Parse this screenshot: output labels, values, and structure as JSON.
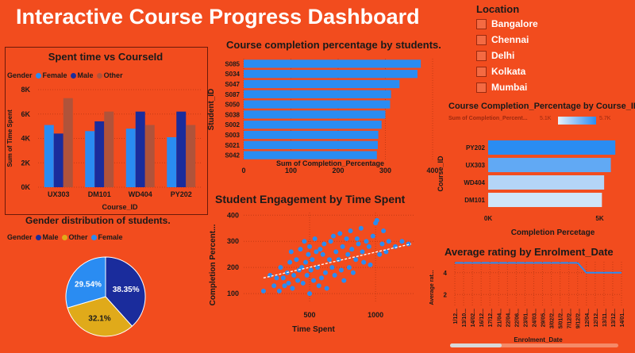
{
  "title": "Interactive Course Progress Dashboard",
  "slicer": {
    "title": "Location",
    "items": [
      "Bangalore",
      "Chennai",
      "Delhi",
      "Kolkata",
      "Mumbai"
    ]
  },
  "colors": {
    "background": "#F24C1E",
    "female": "#2A8CF2",
    "male": "#1A2C9C",
    "other": "#B0533A",
    "other_pie": "#E0AA1A",
    "bar": "#2A8CF2",
    "light_bar": "#CFE4F8"
  },
  "chart_data": [
    {
      "type": "bar",
      "title": "Spent time vs CourseId",
      "xlabel": "Course_ID",
      "ylabel": "Sum of Time Spent",
      "legend_title": "Gender",
      "categories": [
        "UX303",
        "DM101",
        "WD404",
        "PY202"
      ],
      "series": [
        {
          "name": "Female",
          "values": [
            5100,
            4600,
            4800,
            4100
          ]
        },
        {
          "name": "Male",
          "values": [
            4400,
            5400,
            6200,
            6200
          ]
        },
        {
          "name": "Other",
          "values": [
            7300,
            6200,
            5100,
            5100
          ]
        }
      ],
      "ylim": [
        0,
        8000
      ],
      "yticks": [
        "0K",
        "2K",
        "4K",
        "6K",
        "8K"
      ]
    },
    {
      "type": "bar",
      "orientation": "horizontal",
      "title": "Course completion percentage by students.",
      "xlabel": "Sum of Completion_Percentage",
      "ylabel": "Student_ID",
      "categories": [
        "S085",
        "S034",
        "S047",
        "S087",
        "S050",
        "S038",
        "S002",
        "S003",
        "S021",
        "S042"
      ],
      "values": [
        375,
        368,
        330,
        312,
        310,
        300,
        292,
        285,
        284,
        282
      ],
      "xlim": [
        0,
        400
      ],
      "xticks": [
        "0",
        "100",
        "200",
        "300",
        "400"
      ]
    },
    {
      "type": "bar",
      "orientation": "horizontal",
      "title": "Course Completion_Percentage by Course_ID",
      "xlabel": "Completion Percetage",
      "ylabel": "Course_ID",
      "legend_title": "Sum of Completion_Percent...",
      "legend_min": "5.1K",
      "legend_max": "5.7K",
      "categories": [
        "PY202",
        "UX303",
        "WD404",
        "DM101"
      ],
      "values": [
        5700,
        5500,
        5200,
        5100
      ],
      "xlim": [
        0,
        5800
      ],
      "xticks": [
        "0K",
        "5K"
      ]
    },
    {
      "type": "pie",
      "title": "Gender distribution of students.",
      "legend_title": "Gender",
      "labels": [
        "Male",
        "Other",
        "Female"
      ],
      "values": [
        38.35,
        32.1,
        29.54
      ],
      "value_labels": [
        "38.35%",
        "32.1%",
        "29.54%"
      ]
    },
    {
      "type": "scatter",
      "title": "Student Engagement by Time Spent",
      "xlabel": "Time Spent",
      "ylabel": "Completion Percent...",
      "xticks": [
        "500",
        "1000"
      ],
      "yticks": [
        "100",
        "200",
        "300",
        "400"
      ],
      "xlim": [
        0,
        1300
      ],
      "ylim": [
        70,
        410
      ],
      "trendline": [
        [
          150,
          160
        ],
        [
          1270,
          290
        ]
      ],
      "points": [
        [
          150,
          110
        ],
        [
          200,
          170
        ],
        [
          230,
          130
        ],
        [
          250,
          160
        ],
        [
          270,
          110
        ],
        [
          280,
          200
        ],
        [
          300,
          160
        ],
        [
          310,
          130
        ],
        [
          330,
          180
        ],
        [
          340,
          140
        ],
        [
          350,
          220
        ],
        [
          360,
          260
        ],
        [
          370,
          120
        ],
        [
          380,
          170
        ],
        [
          400,
          230
        ],
        [
          410,
          150
        ],
        [
          420,
          190
        ],
        [
          430,
          270
        ],
        [
          440,
          200
        ],
        [
          450,
          140
        ],
        [
          460,
          300
        ],
        [
          470,
          220
        ],
        [
          480,
          170
        ],
        [
          490,
          250
        ],
        [
          500,
          100
        ],
        [
          500,
          280
        ],
        [
          510,
          190
        ],
        [
          520,
          230
        ],
        [
          530,
          150
        ],
        [
          540,
          310
        ],
        [
          550,
          260
        ],
        [
          560,
          200
        ],
        [
          570,
          130
        ],
        [
          580,
          270
        ],
        [
          590,
          160
        ],
        [
          600,
          250
        ],
        [
          610,
          290
        ],
        [
          620,
          180
        ],
        [
          630,
          120
        ],
        [
          650,
          230
        ],
        [
          660,
          300
        ],
        [
          670,
          200
        ],
        [
          680,
          320
        ],
        [
          690,
          170
        ],
        [
          700,
          260
        ],
        [
          720,
          230
        ],
        [
          730,
          330
        ],
        [
          740,
          190
        ],
        [
          750,
          280
        ],
        [
          760,
          150
        ],
        [
          780,
          310
        ],
        [
          790,
          250
        ],
        [
          800,
          200
        ],
        [
          810,
          340
        ],
        [
          820,
          270
        ],
        [
          830,
          180
        ],
        [
          850,
          230
        ],
        [
          860,
          310
        ],
        [
          870,
          290
        ],
        [
          890,
          350
        ],
        [
          900,
          260
        ],
        [
          910,
          220
        ],
        [
          930,
          300
        ],
        [
          950,
          280
        ],
        [
          960,
          210
        ],
        [
          980,
          320
        ],
        [
          1000,
          370
        ],
        [
          1010,
          380
        ],
        [
          1030,
          250
        ],
        [
          1050,
          290
        ],
        [
          1060,
          340
        ],
        [
          1080,
          260
        ],
        [
          1100,
          300
        ],
        [
          1150,
          280
        ],
        [
          1200,
          300
        ],
        [
          1250,
          290
        ]
      ]
    },
    {
      "type": "line",
      "title": "Average rating by Enrolment_Date",
      "xlabel": "Enrolment_Date",
      "ylabel": "Average rat...",
      "yticks": [
        "2",
        "4"
      ],
      "ylim": [
        1,
        5
      ],
      "x": [
        "1/12...",
        "13/10...",
        "14/02...",
        "16/12...",
        "17/12...",
        "21/04...",
        "22/04...",
        "22/06...",
        "23/01...",
        "24/03...",
        "29/05...",
        "3/02/2...",
        "5/01/2...",
        "7/12/2...",
        "9/12/2...",
        "12/04...",
        "12/12...",
        "13/11...",
        "13/12...",
        "14/01..."
      ],
      "values": [
        4.9,
        4.9,
        4.9,
        4.9,
        4.9,
        4.9,
        4.9,
        4.9,
        4.9,
        4.9,
        4.9,
        4.9,
        4.9,
        4.9,
        4.9,
        4.0,
        4.0,
        4.0,
        4.0,
        4.0
      ]
    }
  ]
}
